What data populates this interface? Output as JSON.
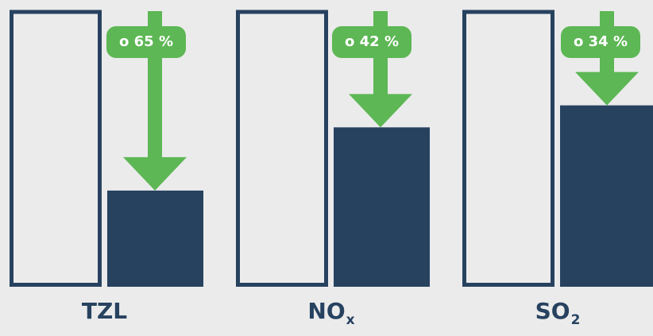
{
  "chart_data": {
    "type": "bar",
    "categories": [
      {
        "main": "TZL",
        "sub": ""
      },
      {
        "main": "NO",
        "sub": "x"
      },
      {
        "main": "SO",
        "sub": "2"
      }
    ],
    "series": [
      {
        "values": [
          100,
          100,
          100
        ]
      },
      {
        "values": [
          35,
          58,
          66
        ]
      }
    ],
    "annotations": [
      "o 65 %",
      "o 42 %",
      "o 34 %"
    ],
    "reductions_percent": [
      65,
      42,
      34
    ],
    "ylim": [
      0,
      100
    ],
    "grid": false
  },
  "colors": {
    "background": "#ebebec",
    "bar": "#27425f",
    "arrow": "#5db754",
    "label": "#27425f"
  }
}
